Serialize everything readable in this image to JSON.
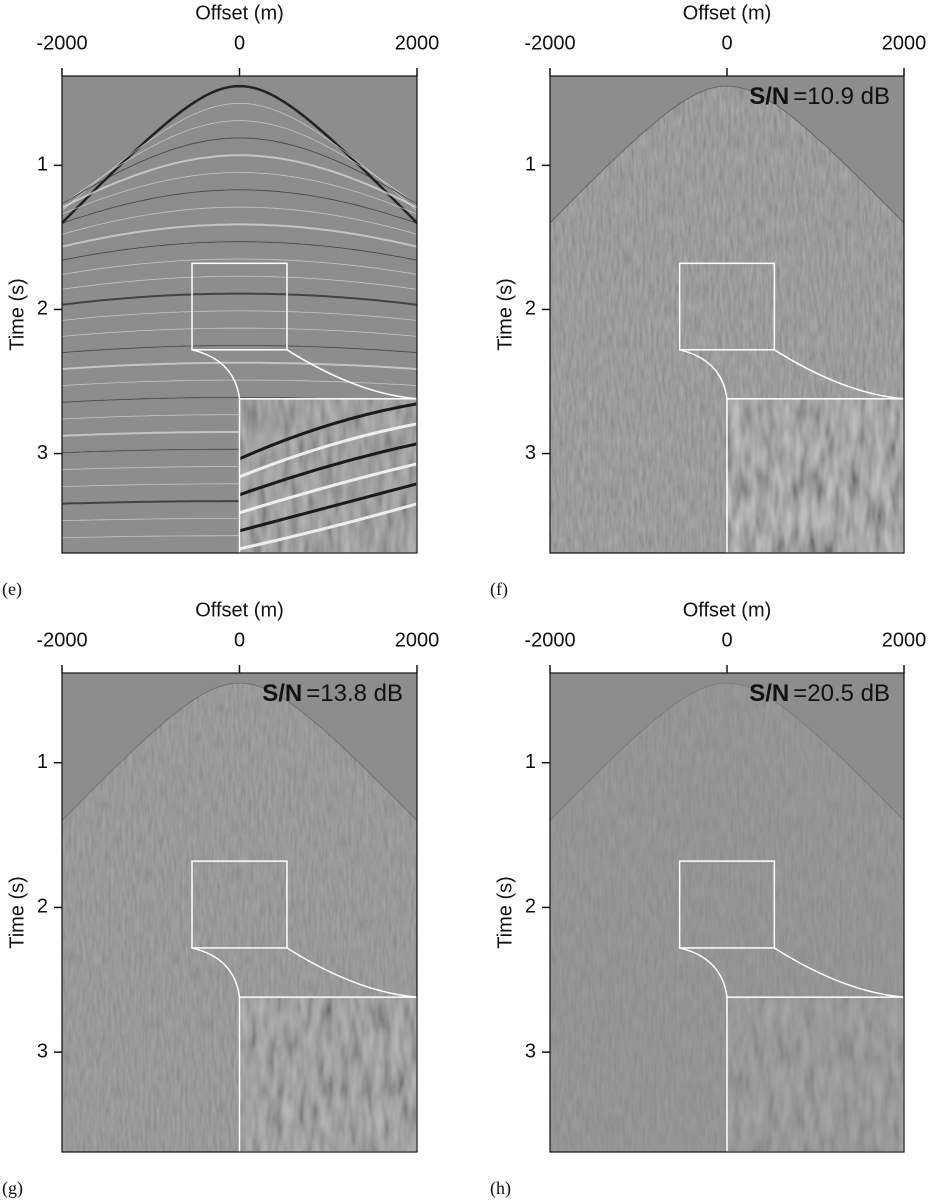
{
  "chart_data": [
    {
      "type": "seismic",
      "panel": "(e)",
      "xlabel": "Offset (m)",
      "ylabel": "Time (s)",
      "xlim": [
        -2000,
        2000
      ],
      "xticks": [
        -2000,
        0,
        2000
      ],
      "ylim": [
        0.38,
        3.69
      ],
      "yticks": [
        1,
        2,
        3
      ]
    },
    {
      "type": "seismic",
      "panel": "(f)",
      "xlabel": "Offset (m)",
      "ylabel": "Time (s)",
      "xlim": [
        -2000,
        2000
      ],
      "xticks": [
        -2000,
        0,
        2000
      ],
      "ylim": [
        0.38,
        3.69
      ],
      "yticks": [
        1,
        2,
        3
      ],
      "snr_label": "S/N",
      "snr_text": "=10.9 dB"
    },
    {
      "type": "seismic",
      "panel": "(g)",
      "xlabel": "Offset (m)",
      "ylabel": "Time (s)",
      "xlim": [
        -2000,
        2000
      ],
      "xticks": [
        -2000,
        0,
        2000
      ],
      "ylim": [
        0.38,
        3.69
      ],
      "yticks": [
        1,
        2,
        3
      ],
      "snr_label": "S/N",
      "snr_text": "=13.8 dB"
    },
    {
      "type": "seismic",
      "panel": "(h)",
      "xlabel": "Offset (m)",
      "ylabel": "Time (s)",
      "xlim": [
        -2000,
        2000
      ],
      "xticks": [
        -2000,
        0,
        2000
      ],
      "ylim": [
        0.38,
        3.69
      ],
      "yticks": [
        1,
        2,
        3
      ],
      "snr_label": "S/N",
      "snr_text": "=20.5 dB"
    }
  ]
}
